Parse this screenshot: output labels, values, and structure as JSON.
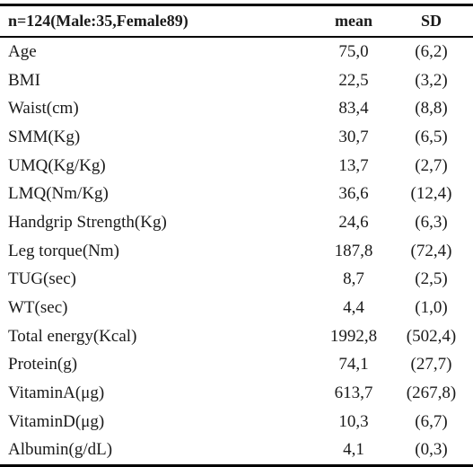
{
  "table": {
    "header": {
      "label": "n=124(Male:35,Female89)",
      "mean": "mean",
      "sd": "SD"
    },
    "rows": [
      {
        "label": "Age",
        "mean": "75,0",
        "sd": "(6,2)"
      },
      {
        "label": "BMI",
        "mean": "22,5",
        "sd": "(3,2)"
      },
      {
        "label": "Waist(cm)",
        "mean": "83,4",
        "sd": "(8,8)"
      },
      {
        "label": "SMM(Kg)",
        "mean": "30,7",
        "sd": "(6,5)"
      },
      {
        "label": "UMQ(Kg/Kg)",
        "mean": "13,7",
        "sd": "(2,7)"
      },
      {
        "label": "LMQ(Nm/Kg)",
        "mean": "36,6",
        "sd": "(12,4)"
      },
      {
        "label": "Handgrip Strength(Kg)",
        "mean": "24,6",
        "sd": "(6,3)"
      },
      {
        "label": "Leg torque(Nm)",
        "mean": "187,8",
        "sd": "(72,4)"
      },
      {
        "label": "TUG(sec)",
        "mean": "8,7",
        "sd": "(2,5)"
      },
      {
        "label": "WT(sec)",
        "mean": "4,4",
        "sd": "(1,0)"
      },
      {
        "label": "Total energy(Kcal)",
        "mean": "1992,8",
        "sd": "(502,4)"
      },
      {
        "label": "Protein(g)",
        "mean": "74,1",
        "sd": "(27,7)"
      },
      {
        "label": "VitaminA(μg)",
        "mean": "613,7",
        "sd": "(267,8)"
      },
      {
        "label": "VitaminD(μg)",
        "mean": "10,3",
        "sd": "(6,7)"
      },
      {
        "label": "Albumin(g/dL)",
        "mean": "4,1",
        "sd": "(0,3)"
      }
    ]
  }
}
